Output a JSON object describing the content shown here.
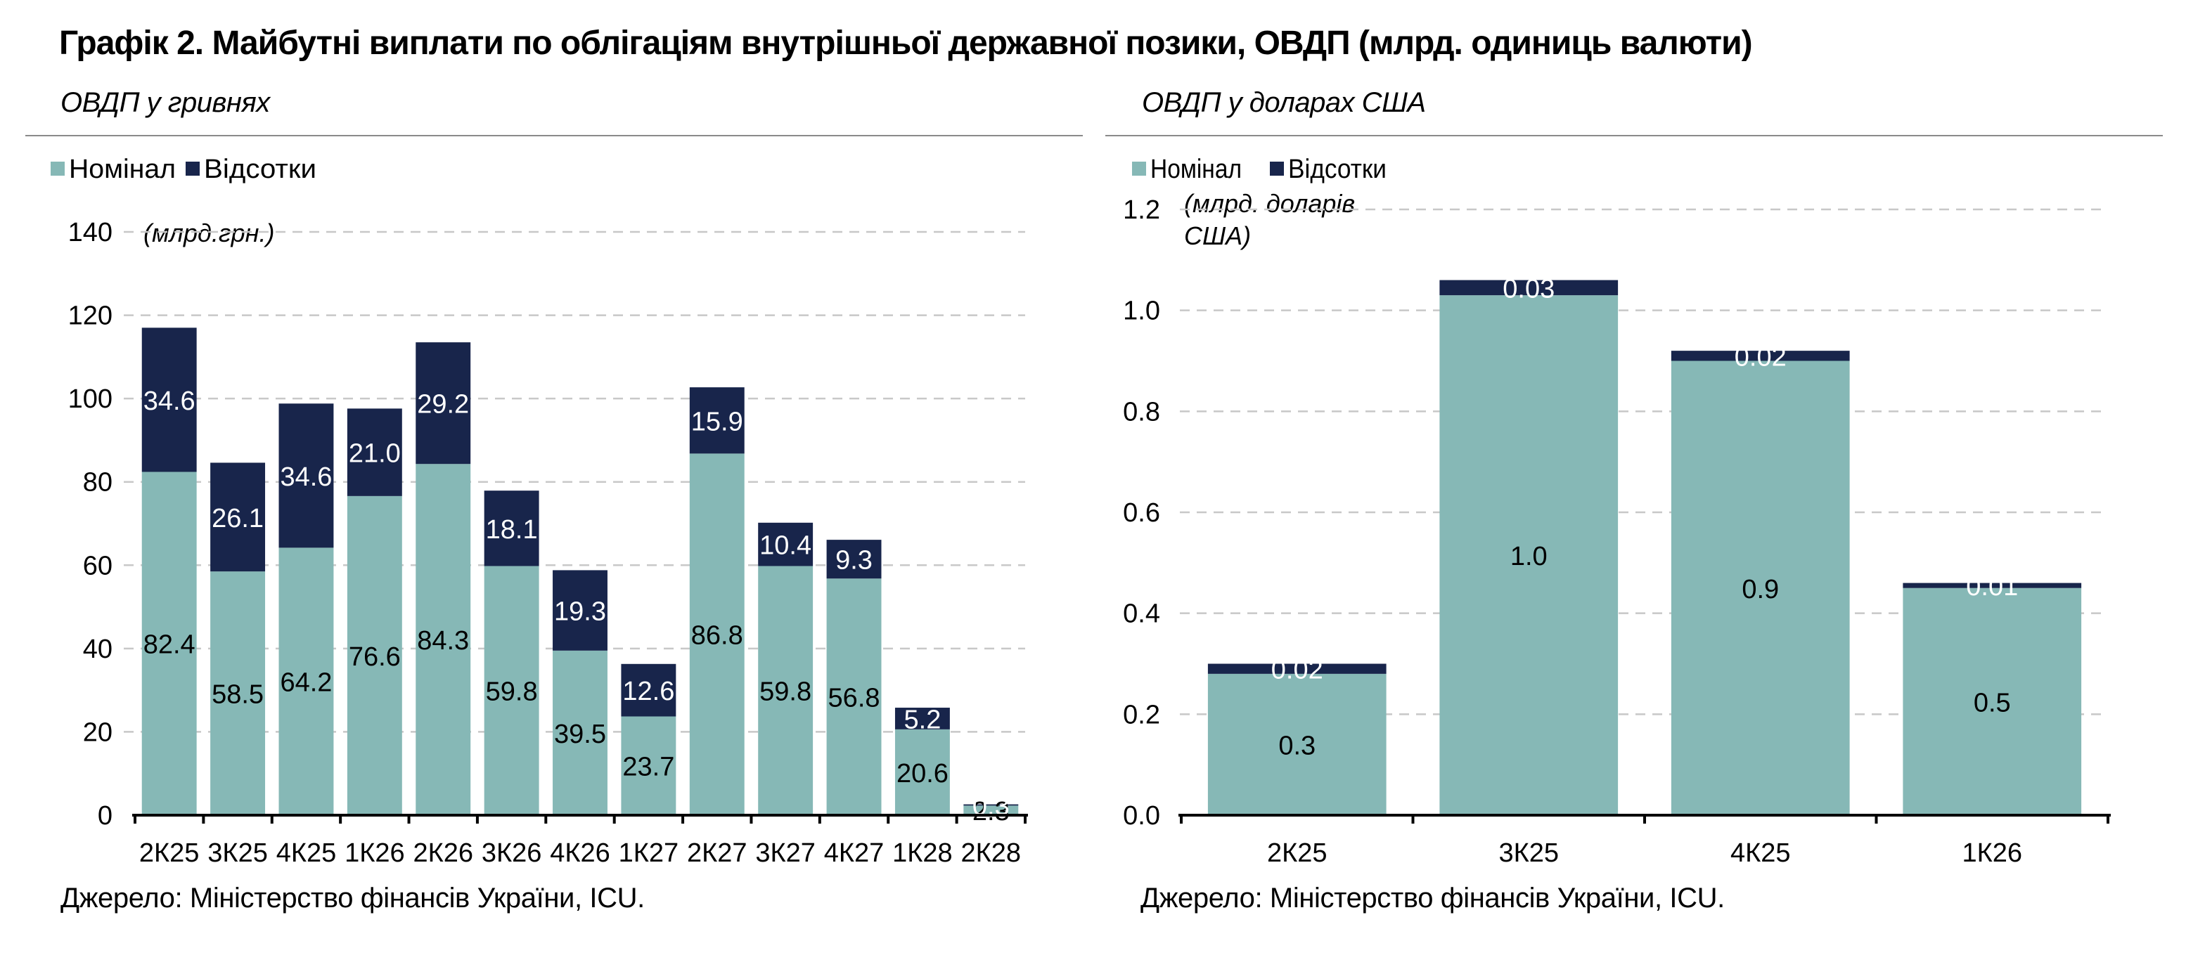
{
  "title": "Графік 2. Майбутні виплати по облігаціям внутрішньої державної позики, ОВДП (млрд. одиниць валюти)",
  "source": "Джерело: Міністерство фінансів України, ICU.",
  "colors": {
    "nominal": "#86b8b6",
    "interest": "#18254b",
    "grid": "#c8c8c8"
  },
  "chart_data": [
    {
      "type": "bar",
      "stacked": true,
      "title": "ОВДП у гривнях",
      "unit_note": "(млрд.грн.)",
      "categories": [
        "2К25",
        "3К25",
        "4К25",
        "1К26",
        "2К26",
        "3К26",
        "4К26",
        "1К27",
        "2К27",
        "3К27",
        "4К27",
        "1К28",
        "2К28"
      ],
      "series": [
        {
          "name": "Номінал",
          "color": "#86b8b6",
          "values": [
            82.4,
            58.5,
            64.2,
            76.6,
            84.3,
            59.8,
            39.5,
            23.7,
            86.8,
            59.8,
            56.8,
            20.6,
            2.3
          ],
          "labels": [
            "82.4",
            "58.5",
            "64.2",
            "76.6",
            "84.3",
            "59.8",
            "39.5",
            "23.7",
            "86.8",
            "59.8",
            "56.8",
            "20.6",
            "2.3"
          ]
        },
        {
          "name": "Відсотки",
          "color": "#18254b",
          "values": [
            34.6,
            26.1,
            34.6,
            21.0,
            29.2,
            18.1,
            19.3,
            12.6,
            15.9,
            10.4,
            9.3,
            5.2,
            0.3
          ],
          "labels": [
            "34.6",
            "26.1",
            "34.6",
            "21.0",
            "29.2",
            "18.1",
            "19.3",
            "12.6",
            "15.9",
            "10.4",
            "9.3",
            "5.2",
            "0.3"
          ]
        }
      ],
      "ylim": [
        0,
        140
      ],
      "yticks": [
        0,
        20,
        40,
        60,
        80,
        100,
        120,
        140
      ],
      "ytick_labels": [
        "0",
        "20",
        "40",
        "60",
        "80",
        "100",
        "120",
        "140"
      ],
      "grid": true,
      "legend": "top-left"
    },
    {
      "type": "bar",
      "stacked": true,
      "title": "ОВДП у доларах США",
      "unit_note": [
        "(млрд. доларів",
        "США)"
      ],
      "categories": [
        "2К25",
        "3К25",
        "4К25",
        "1К26"
      ],
      "series": [
        {
          "name": "Номінал",
          "color": "#86b8b6",
          "values": [
            0.28,
            1.03,
            0.9,
            0.45
          ],
          "labels": [
            "0.3",
            "1.0",
            "0.9",
            "0.5"
          ]
        },
        {
          "name": "Відсотки",
          "color": "#18254b",
          "values": [
            0.02,
            0.03,
            0.02,
            0.01
          ],
          "labels": [
            "0.02",
            "0.03",
            "0.02",
            "0.01"
          ]
        }
      ],
      "ylim": [
        0,
        1.2
      ],
      "yticks": [
        0,
        0.2,
        0.4,
        0.6,
        0.8,
        1.0,
        1.2
      ],
      "ytick_labels": [
        "0.0",
        "0.2",
        "0.4",
        "0.6",
        "0.8",
        "1.0",
        "1.2"
      ],
      "grid": true,
      "legend": "top-left"
    }
  ]
}
